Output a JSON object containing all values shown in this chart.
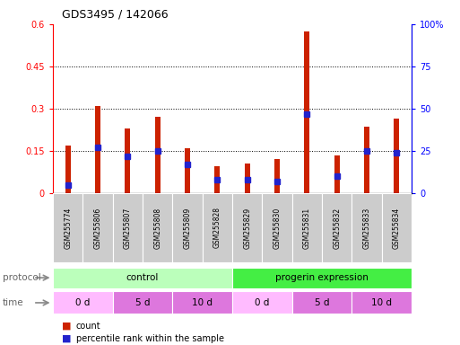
{
  "title": "GDS3495 / 142066",
  "samples": [
    "GSM255774",
    "GSM255806",
    "GSM255807",
    "GSM255808",
    "GSM255809",
    "GSM255828",
    "GSM255829",
    "GSM255830",
    "GSM255831",
    "GSM255832",
    "GSM255833",
    "GSM255834"
  ],
  "count_values": [
    0.17,
    0.31,
    0.23,
    0.27,
    0.16,
    0.095,
    0.105,
    0.12,
    0.575,
    0.135,
    0.235,
    0.265
  ],
  "percentile_values": [
    5,
    27,
    22,
    25,
    17,
    8,
    8,
    7,
    47,
    10,
    25,
    24
  ],
  "left_ylim": [
    0,
    0.6
  ],
  "right_ylim": [
    0,
    100
  ],
  "left_yticks": [
    0,
    0.15,
    0.3,
    0.45,
    0.6
  ],
  "right_yticks": [
    0,
    25,
    50,
    75,
    100
  ],
  "right_yticklabels": [
    "0",
    "25",
    "50",
    "75",
    "100%"
  ],
  "bar_color": "#cc2200",
  "marker_color": "#2222cc",
  "protocol_groups": [
    {
      "label": "control",
      "start": 0,
      "end": 6,
      "color": "#bbffbb"
    },
    {
      "label": "progerin expression",
      "start": 6,
      "end": 12,
      "color": "#44ee44"
    }
  ],
  "time_spans": [
    {
      "label": "0 d",
      "start": 0,
      "end": 2,
      "color": "#ffbbff"
    },
    {
      "label": "5 d",
      "start": 2,
      "end": 4,
      "color": "#dd77dd"
    },
    {
      "label": "10 d",
      "start": 4,
      "end": 6,
      "color": "#dd77dd"
    },
    {
      "label": "0 d",
      "start": 6,
      "end": 8,
      "color": "#ffbbff"
    },
    {
      "label": "5 d",
      "start": 8,
      "end": 10,
      "color": "#dd77dd"
    },
    {
      "label": "10 d",
      "start": 10,
      "end": 12,
      "color": "#dd77dd"
    }
  ],
  "legend_count_label": "count",
  "legend_pct_label": "percentile rank within the sample",
  "protocol_label": "protocol",
  "time_label": "time",
  "bar_width": 0.18,
  "marker_size": 4
}
